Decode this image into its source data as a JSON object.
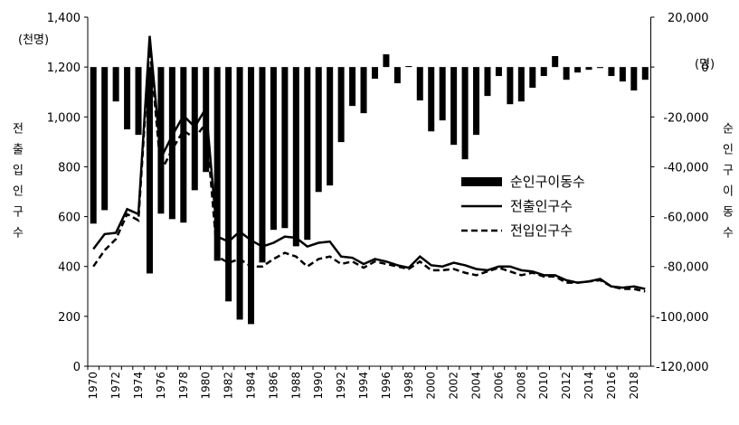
{
  "chart_data": {
    "type": "combo",
    "categories": [
      "1970",
      null,
      "1972",
      null,
      "1974",
      null,
      "1976",
      null,
      "1978",
      null,
      "1980",
      null,
      "1982",
      null,
      "1984",
      null,
      "1986",
      null,
      "1988",
      null,
      "1990",
      null,
      "1992",
      null,
      "1994",
      null,
      "1996",
      null,
      "1998",
      null,
      "2000",
      null,
      "2002",
      null,
      "2004",
      null,
      "2006",
      null,
      "2008",
      null,
      "2010",
      null,
      "2012",
      null,
      "2014",
      null,
      "2016",
      null,
      "2018",
      null
    ],
    "y_label": "(천명)",
    "y_title": "전출입인구수",
    "y2_label": "(명)",
    "y2_title": "순인구이동수",
    "ylim": [
      0,
      1400
    ],
    "yticks": [
      0,
      200,
      400,
      600,
      800,
      {
        "value": 1000,
        "label": "1,000"
      },
      {
        "value": 1200,
        "label": "1,200"
      },
      {
        "value": 1400,
        "label": "1,400"
      }
    ],
    "y2lim": [
      -120000,
      20000
    ],
    "y2ticks": [
      {
        "value": -120000,
        "label": "-120,000"
      },
      {
        "value": -100000,
        "label": "-100,000"
      },
      {
        "value": -80000,
        "label": "-80,000"
      },
      {
        "value": -60000,
        "label": "-60,000"
      },
      {
        "value": -40000,
        "label": "-40,000"
      },
      {
        "value": -20000,
        "label": "-20,000"
      },
      0,
      {
        "value": 20000,
        "label": "20,000"
      }
    ],
    "series": [
      {
        "name": "순인구이동수",
        "type": "bar",
        "axis": "y2",
        "color": "#000000",
        "values": [
          -62800,
          -57400,
          -13800,
          -25000,
          -27200,
          -82800,
          -58800,
          -61000,
          -62400,
          -49400,
          -42100,
          -77700,
          -94000,
          -101300,
          -103100,
          -78400,
          -65300,
          -64600,
          -71900,
          -69300,
          -50100,
          -47500,
          -30100,
          -15600,
          -18500,
          -4700,
          5100,
          -6500,
          400,
          -13400,
          -25800,
          -21400,
          -31200,
          -37000,
          -27200,
          -11600,
          -3600,
          -14900,
          -13800,
          -8300,
          -3600,
          4400,
          -5100,
          -2200,
          -1100,
          -400,
          -3600,
          -5800,
          -9400,
          -5100
        ]
      },
      {
        "name": "전출인구수",
        "type": "line",
        "style": "solid",
        "color": "#000000",
        "values": [
          470,
          530,
          535,
          630,
          610,
          1325,
          835,
          925,
          1005,
          960,
          1035,
          520,
          500,
          540,
          505,
          480,
          495,
          520,
          515,
          480,
          495,
          500,
          440,
          435,
          410,
          430,
          420,
          405,
          395,
          440,
          405,
          400,
          415,
          405,
          390,
          385,
          400,
          400,
          385,
          380,
          365,
          365,
          345,
          335,
          340,
          350,
          320,
          315,
          320,
          310
        ]
      },
      {
        "name": "전입인구수",
        "type": "line",
        "style": "dashed",
        "color": "#000000",
        "values": [
          400,
          465,
          510,
          610,
          585,
          1290,
          780,
          870,
          945,
          915,
          975,
          440,
          415,
          430,
          400,
          400,
          430,
          455,
          440,
          400,
          430,
          440,
          410,
          420,
          395,
          420,
          410,
          400,
          390,
          420,
          385,
          385,
          390,
          375,
          365,
          380,
          395,
          380,
          365,
          375,
          360,
          360,
          335,
          335,
          340,
          345,
          320,
          310,
          310,
          300
        ]
      }
    ]
  }
}
